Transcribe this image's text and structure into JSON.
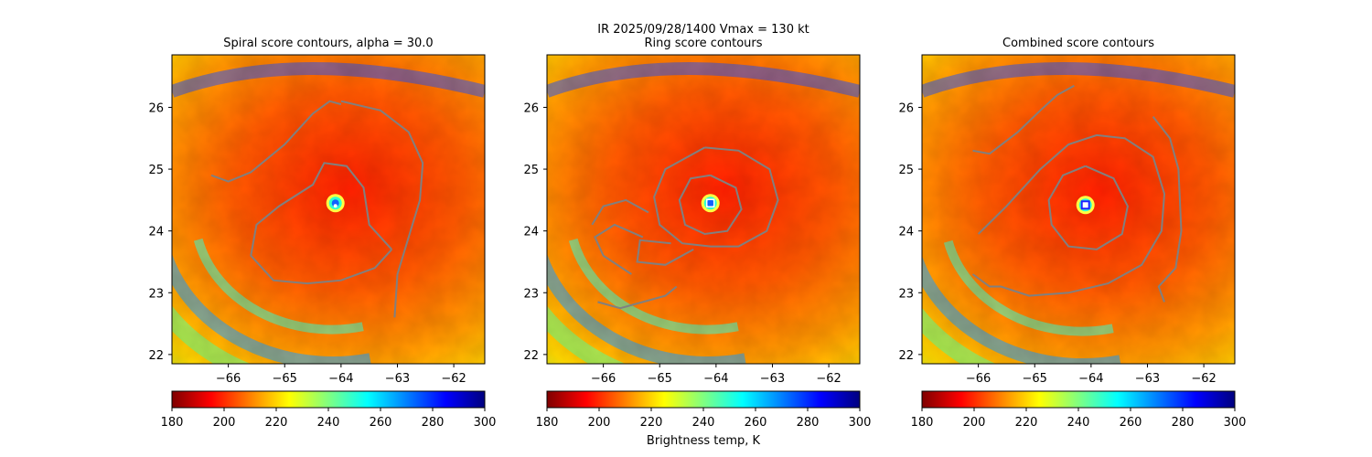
{
  "figure": {
    "suptitle_line1": "IR  2025/09/28/1400    Vmax = 130 kt",
    "colorbar_label": "Brightness temp, K"
  },
  "colormap": [
    "#7f0000",
    "#ff0000",
    "#ff8000",
    "#ffff00",
    "#80ff80",
    "#00ffff",
    "#0080ff",
    "#0000ff",
    "#00007f"
  ],
  "contour_color": "#808080",
  "chart_data": [
    {
      "type": "heatmap",
      "title": "Spiral score contours, alpha = 30.0",
      "xlabel": "",
      "ylabel": "",
      "xlim": [
        -67.0,
        -61.45
      ],
      "ylim": [
        21.85,
        26.85
      ],
      "xticks": [
        -66,
        -65,
        -64,
        -63,
        -62
      ],
      "yticks": [
        22,
        23,
        24,
        25,
        26
      ],
      "center": [
        -64.1,
        24.45
      ],
      "colorbar": {
        "vmin": 180,
        "vmax": 300,
        "ticks": [
          180,
          200,
          220,
          240,
          260,
          280,
          300
        ],
        "units": "K"
      },
      "contours": [
        [
          [
            -64.0,
            26.1
          ],
          [
            -63.3,
            25.95
          ],
          [
            -62.8,
            25.6
          ],
          [
            -62.55,
            25.1
          ],
          [
            -62.6,
            24.5
          ],
          [
            -62.8,
            23.9
          ],
          [
            -63.0,
            23.3
          ],
          [
            -63.05,
            22.6
          ]
        ],
        [
          [
            -66.3,
            24.9
          ],
          [
            -66.0,
            24.8
          ],
          [
            -65.6,
            24.95
          ],
          [
            -65.0,
            25.4
          ],
          [
            -64.5,
            25.9
          ],
          [
            -64.2,
            26.1
          ],
          [
            -64.0,
            26.05
          ]
        ],
        [
          [
            -63.1,
            23.7
          ],
          [
            -63.4,
            23.4
          ],
          [
            -64.0,
            23.2
          ],
          [
            -64.6,
            23.15
          ],
          [
            -65.2,
            23.2
          ],
          [
            -65.6,
            23.6
          ],
          [
            -65.5,
            24.1
          ],
          [
            -65.1,
            24.4
          ],
          [
            -64.5,
            24.75
          ],
          [
            -64.3,
            25.1
          ],
          [
            -63.9,
            25.05
          ],
          [
            -63.6,
            24.7
          ],
          [
            -63.5,
            24.1
          ],
          [
            -63.1,
            23.7
          ]
        ]
      ]
    },
    {
      "type": "heatmap",
      "title": "Ring score contours",
      "xlabel": "",
      "ylabel": "",
      "xlim": [
        -67.0,
        -61.45
      ],
      "ylim": [
        21.85,
        26.85
      ],
      "xticks": [
        -66,
        -65,
        -64,
        -63,
        -62
      ],
      "yticks": [
        22,
        23,
        24,
        25,
        26
      ],
      "center": [
        -64.1,
        24.45
      ],
      "colorbar": {
        "vmin": 180,
        "vmax": 300,
        "ticks": [
          180,
          200,
          220,
          240,
          260,
          280,
          300
        ],
        "units": "K"
      },
      "contours": [
        [
          [
            -64.2,
            25.35
          ],
          [
            -63.6,
            25.3
          ],
          [
            -63.05,
            25.0
          ],
          [
            -62.9,
            24.5
          ],
          [
            -63.1,
            24.0
          ],
          [
            -63.6,
            23.75
          ],
          [
            -64.1,
            23.75
          ],
          [
            -64.6,
            23.8
          ],
          [
            -65.0,
            24.1
          ],
          [
            -65.1,
            24.55
          ],
          [
            -64.9,
            25.0
          ],
          [
            -64.2,
            25.35
          ]
        ],
        [
          [
            -64.4,
            23.7
          ],
          [
            -64.9,
            23.45
          ],
          [
            -65.4,
            23.5
          ],
          [
            -65.35,
            23.85
          ],
          [
            -64.8,
            23.8
          ]
        ],
        [
          [
            -65.5,
            23.3
          ],
          [
            -66.0,
            23.6
          ],
          [
            -66.15,
            23.9
          ],
          [
            -65.8,
            24.1
          ],
          [
            -65.3,
            23.9
          ]
        ],
        [
          [
            -66.2,
            24.1
          ],
          [
            -66.0,
            24.4
          ],
          [
            -65.6,
            24.5
          ],
          [
            -65.2,
            24.3
          ]
        ],
        [
          [
            -66.1,
            22.85
          ],
          [
            -65.7,
            22.75
          ],
          [
            -65.3,
            22.85
          ],
          [
            -64.9,
            22.95
          ],
          [
            -64.7,
            23.1
          ]
        ],
        [
          [
            -64.1,
            24.9
          ],
          [
            -63.65,
            24.7
          ],
          [
            -63.55,
            24.35
          ],
          [
            -63.8,
            24.0
          ],
          [
            -64.2,
            23.95
          ],
          [
            -64.55,
            24.1
          ],
          [
            -64.65,
            24.5
          ],
          [
            -64.45,
            24.85
          ],
          [
            -64.1,
            24.9
          ]
        ]
      ]
    },
    {
      "type": "heatmap",
      "title": "Combined score contours",
      "xlabel": "",
      "ylabel": "",
      "xlim": [
        -67.0,
        -61.45
      ],
      "ylim": [
        21.85,
        26.85
      ],
      "xticks": [
        -66,
        -65,
        -64,
        -63,
        -62
      ],
      "yticks": [
        22,
        23,
        24,
        25,
        26
      ],
      "center": [
        -64.1,
        24.42
      ],
      "colorbar": {
        "vmin": 180,
        "vmax": 300,
        "ticks": [
          180,
          200,
          220,
          240,
          260,
          280,
          300
        ],
        "units": "K"
      },
      "contours": [
        [
          [
            -66.1,
            25.3
          ],
          [
            -65.8,
            25.25
          ],
          [
            -65.3,
            25.6
          ],
          [
            -64.9,
            25.95
          ],
          [
            -64.6,
            26.2
          ],
          [
            -64.3,
            26.35
          ]
        ],
        [
          [
            -62.9,
            25.85
          ],
          [
            -62.6,
            25.5
          ],
          [
            -62.45,
            25.0
          ],
          [
            -62.4,
            24.0
          ],
          [
            -62.5,
            23.4
          ],
          [
            -62.8,
            23.1
          ],
          [
            -62.7,
            22.85
          ]
        ],
        [
          [
            -66.0,
            23.95
          ],
          [
            -65.5,
            24.4
          ],
          [
            -64.9,
            25.0
          ],
          [
            -64.4,
            25.4
          ],
          [
            -63.9,
            25.55
          ],
          [
            -63.4,
            25.5
          ],
          [
            -62.9,
            25.2
          ],
          [
            -62.7,
            24.6
          ],
          [
            -62.75,
            24.0
          ],
          [
            -63.1,
            23.45
          ],
          [
            -63.7,
            23.15
          ],
          [
            -64.4,
            23.0
          ],
          [
            -65.1,
            22.95
          ],
          [
            -65.6,
            23.1
          ],
          [
            -65.8,
            23.1
          ],
          [
            -66.1,
            23.3
          ]
        ],
        [
          [
            -64.1,
            25.05
          ],
          [
            -63.6,
            24.85
          ],
          [
            -63.35,
            24.4
          ],
          [
            -63.45,
            23.95
          ],
          [
            -63.9,
            23.7
          ],
          [
            -64.4,
            23.75
          ],
          [
            -64.7,
            24.1
          ],
          [
            -64.75,
            24.5
          ],
          [
            -64.5,
            24.9
          ],
          [
            -64.1,
            25.05
          ]
        ]
      ]
    }
  ]
}
